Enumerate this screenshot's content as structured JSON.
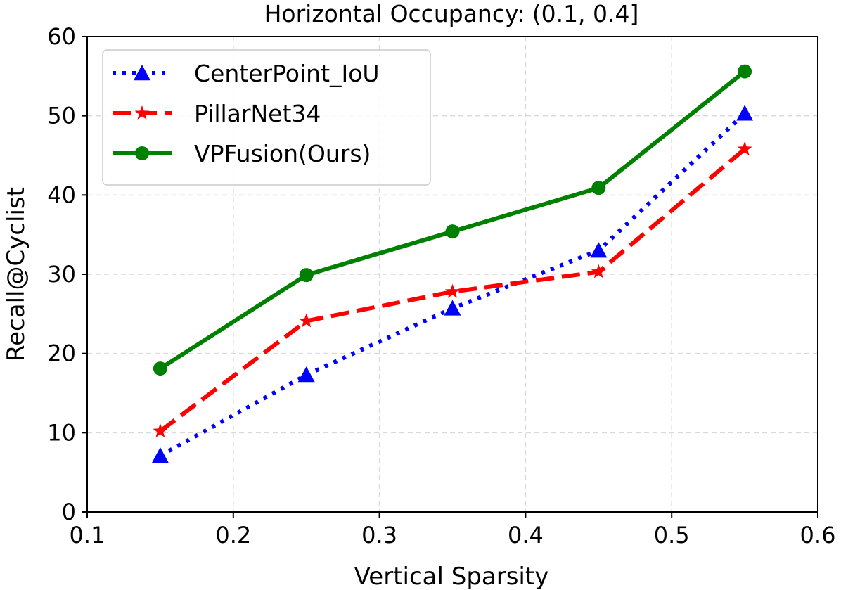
{
  "chart_data": {
    "type": "line",
    "title": "Horizontal Occupancy: (0.1, 0.4]",
    "xlabel": "Vertical Sparsity",
    "ylabel": "Recall@Cyclist",
    "xlim": [
      0.1,
      0.6
    ],
    "ylim": [
      0,
      60
    ],
    "xticks": [
      0.1,
      0.2,
      0.3,
      0.4,
      0.5,
      0.6
    ],
    "xtick_labels": [
      "0.1",
      "0.2",
      "0.3",
      "0.4",
      "0.5",
      "0.6"
    ],
    "yticks": [
      0,
      10,
      20,
      30,
      40,
      50,
      60
    ],
    "ytick_labels": [
      "0",
      "10",
      "20",
      "30",
      "40",
      "50",
      "60"
    ],
    "grid": true,
    "legend_position": "top-left",
    "x": [
      0.15,
      0.25,
      0.35,
      0.45,
      0.55
    ],
    "series": [
      {
        "name": "CenterPoint_IoU",
        "color": "#0000ff",
        "line_style": "dotted",
        "marker": "triangle",
        "values": [
          7.1,
          17.3,
          25.7,
          33.0,
          50.3
        ]
      },
      {
        "name": "PillarNet34",
        "color": "#ff0000",
        "line_style": "dashed",
        "marker": "star",
        "values": [
          10.2,
          24.1,
          27.8,
          30.3,
          45.8
        ]
      },
      {
        "name": "VPFusion(Ours)",
        "color": "#008000",
        "line_style": "solid",
        "marker": "circle",
        "values": [
          18.1,
          29.9,
          35.4,
          40.9,
          55.6
        ]
      }
    ]
  }
}
